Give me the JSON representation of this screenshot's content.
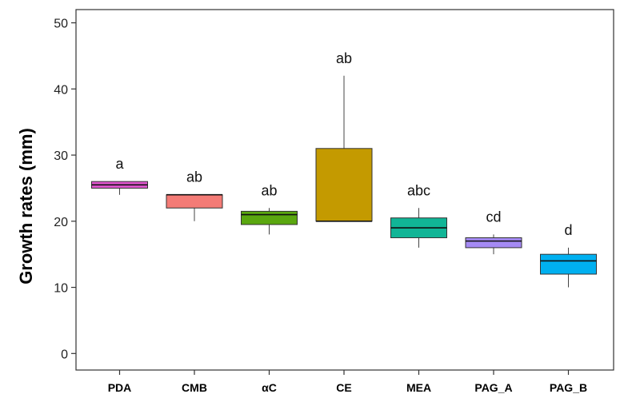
{
  "chart_data": {
    "type": "boxplot",
    "title": "",
    "xlabel": "",
    "ylabel": "Growth rates (mm)",
    "ylim": [
      -2.5,
      52
    ],
    "yticks": [
      0,
      10,
      20,
      30,
      40,
      50
    ],
    "grid": false,
    "categories": [
      "PDA",
      "CMB",
      "αC",
      "CE",
      "MEA",
      "PAG_A",
      "PAG_B"
    ],
    "boxes": [
      {
        "category": "PDA",
        "min": 24,
        "q1": 25,
        "median": 25.5,
        "q3": 26,
        "max": 26,
        "label": "a",
        "color": "#e056cf"
      },
      {
        "category": "CMB",
        "min": 20,
        "q1": 22,
        "median": 24,
        "q3": 24,
        "max": 24,
        "label": "ab",
        "color": "#f47b76"
      },
      {
        "category": "αC",
        "min": 18,
        "q1": 19.5,
        "median": 21,
        "q3": 21.5,
        "max": 22,
        "label": "ab",
        "color": "#5aa70f"
      },
      {
        "category": "CE",
        "min": 20,
        "q1": 20,
        "median": 20,
        "q3": 31,
        "max": 42,
        "label": "ab",
        "color": "#c49a00"
      },
      {
        "category": "MEA",
        "min": 16,
        "q1": 17.5,
        "median": 19,
        "q3": 20.5,
        "max": 22,
        "label": "abc",
        "color": "#11b596"
      },
      {
        "category": "PAG_A",
        "min": 15,
        "q1": 16,
        "median": 17,
        "q3": 17.5,
        "max": 18,
        "label": "cd",
        "color": "#a58af4"
      },
      {
        "category": "PAG_B",
        "min": 10,
        "q1": 12,
        "median": 14,
        "q3": 15,
        "max": 16,
        "label": "d",
        "color": "#00b0f0"
      }
    ]
  }
}
